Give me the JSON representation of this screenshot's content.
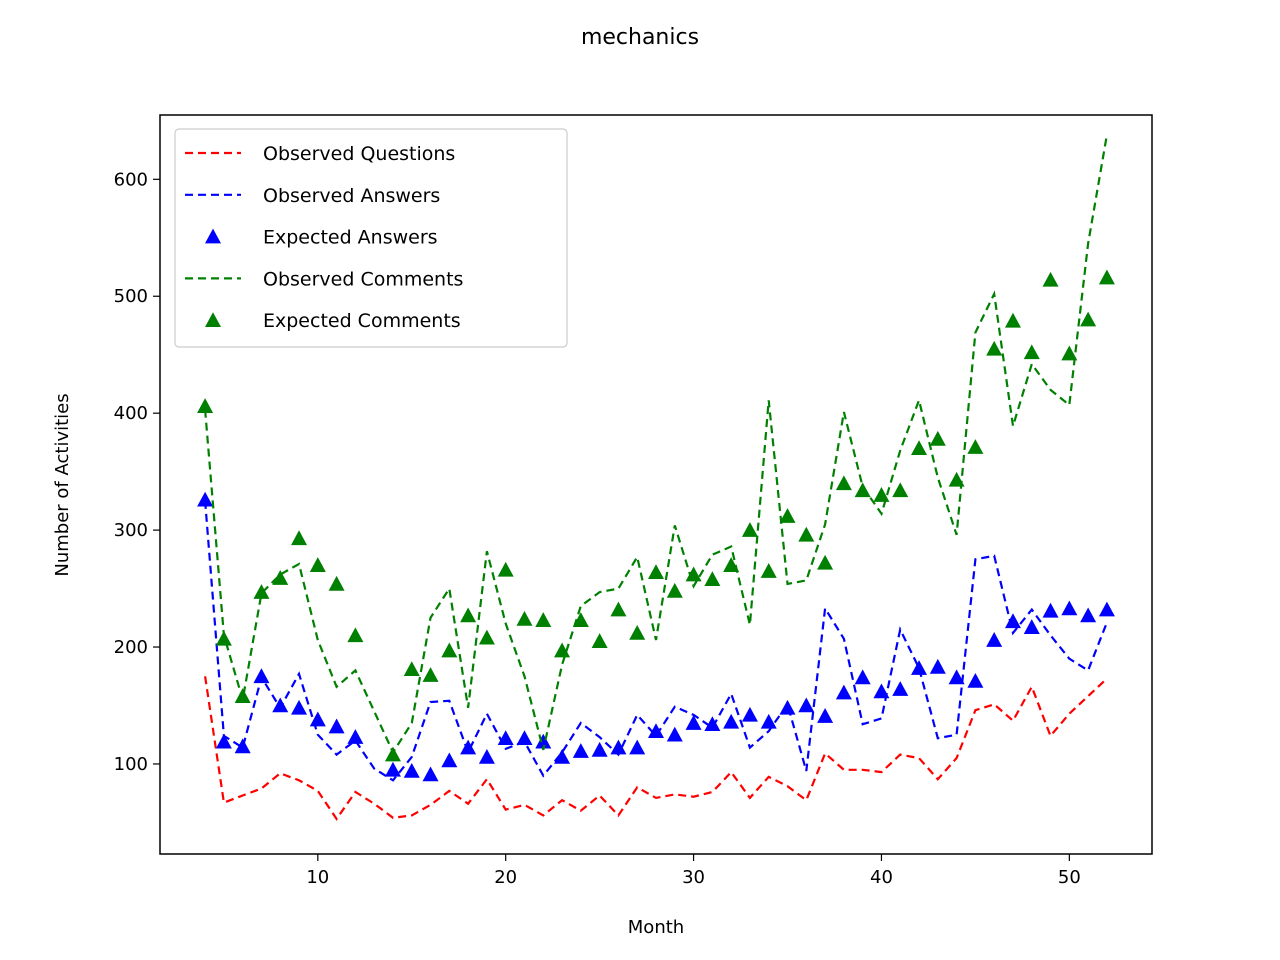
{
  "chart_data": {
    "type": "line",
    "title": "mechanics",
    "xlabel": "Month",
    "ylabel": "Number of Activities",
    "xlim": [
      1.6,
      54.4
    ],
    "ylim": [
      23,
      655
    ],
    "xticks": [
      10,
      20,
      30,
      40,
      50
    ],
    "yticks": [
      100,
      200,
      300,
      400,
      500,
      600
    ],
    "grid": false,
    "legend_position": "upper-left",
    "x": [
      4,
      5,
      6,
      7,
      8,
      9,
      10,
      11,
      12,
      13,
      14,
      15,
      16,
      17,
      18,
      19,
      20,
      21,
      22,
      23,
      24,
      25,
      26,
      27,
      28,
      29,
      30,
      31,
      32,
      33,
      34,
      35,
      36,
      37,
      38,
      39,
      40,
      41,
      42,
      43,
      44,
      45,
      46,
      47,
      48,
      49,
      50,
      51,
      52
    ],
    "series": [
      {
        "name": "Observed Questions",
        "style": "dashed",
        "color": "#ff0000",
        "values": [
          175,
          67,
          73,
          79,
          92,
          86,
          77,
          53,
          76,
          66,
          54,
          56,
          65,
          77,
          66,
          87,
          61,
          65,
          56,
          69,
          60,
          73,
          56,
          80,
          71,
          74,
          72,
          76,
          93,
          71,
          89,
          81,
          69,
          109,
          95,
          95,
          93,
          108,
          105,
          87,
          105,
          146,
          151,
          137,
          166,
          124,
          143,
          158,
          173
        ]
      },
      {
        "name": "Observed Answers",
        "style": "dashed",
        "color": "#0000ff",
        "values": [
          325,
          124,
          114,
          174,
          148,
          177,
          125,
          108,
          120,
          96,
          86,
          106,
          153,
          154,
          110,
          143,
          113,
          119,
          90,
          110,
          135,
          123,
          108,
          142,
          124,
          149,
          142,
          131,
          160,
          114,
          128,
          151,
          94,
          233,
          207,
          134,
          139,
          215,
          182,
          122,
          125,
          275,
          278,
          212,
          232,
          210,
          190,
          180,
          221
        ]
      },
      {
        "name": "Expected Answers",
        "style": "markers",
        "color": "#0000ff",
        "values": [
          326,
          119,
          115,
          175,
          150,
          148,
          138,
          132,
          123,
          null,
          95,
          94,
          91,
          103,
          114,
          106,
          122,
          122,
          119,
          106,
          111,
          112,
          114,
          114,
          128,
          125,
          135,
          134,
          136,
          142,
          136,
          148,
          150,
          141,
          161,
          174,
          162,
          164,
          182,
          183,
          174,
          171,
          206,
          222,
          217,
          231,
          233,
          227,
          232
        ]
      },
      {
        "name": "Observed Comments",
        "style": "dashed",
        "color": "#008000",
        "values": [
          403,
          210,
          155,
          246,
          262,
          271,
          206,
          166,
          180,
          145,
          110,
          135,
          225,
          250,
          148,
          282,
          220,
          175,
          112,
          185,
          235,
          247,
          250,
          277,
          206,
          304,
          252,
          279,
          286,
          219,
          411,
          254,
          257,
          305,
          401,
          337,
          314,
          368,
          411,
          345,
          296,
          469,
          502,
          389,
          442,
          420,
          407,
          545,
          638
        ]
      },
      {
        "name": "Expected Comments",
        "style": "markers",
        "color": "#008000",
        "values": [
          406,
          207,
          158,
          247,
          259,
          293,
          270,
          254,
          210,
          null,
          108,
          181,
          176,
          197,
          227,
          208,
          266,
          224,
          223,
          197,
          223,
          205,
          232,
          212,
          264,
          248,
          262,
          258,
          270,
          300,
          265,
          312,
          296,
          272,
          340,
          334,
          330,
          334,
          370,
          378,
          343,
          371,
          455,
          479,
          452,
          514,
          451,
          480,
          516
        ]
      }
    ]
  }
}
